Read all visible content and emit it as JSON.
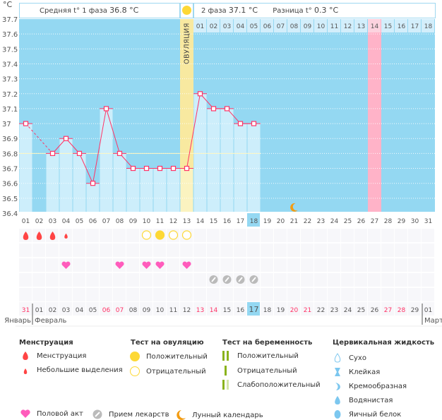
{
  "y_unit": "°C",
  "header": {
    "phase1_label": "Средняя t° 1 фаза",
    "phase1_value": "36.8 °C",
    "phase2_label": "2 фаза",
    "phase2_value": "37.1 °C",
    "diff_label": "Разница t°",
    "diff_value": "0.3 °C",
    "ovulation_label": "ОВУЛЯЦИЯ"
  },
  "colors": {
    "plot_bg": "#94d8f2",
    "bar": "#cdeefb",
    "line": "#ff3366",
    "ovulation": "#f8e9a0",
    "highlight_day": "#ffb3c8",
    "weekend": "#ff3366"
  },
  "chart_data": {
    "type": "line",
    "ylim": [
      36.4,
      37.7
    ],
    "yticks": [
      "37.7",
      "37.6",
      "37.5",
      "37.4",
      "37.3",
      "37.2",
      "37.1",
      "37",
      "36.9",
      "36.8",
      "36.7",
      "36.6",
      "36.5",
      "36.4"
    ],
    "cycle_days": [
      "01",
      "02",
      "03",
      "04",
      "05",
      "06",
      "07",
      "08",
      "09",
      "10",
      "11",
      "12",
      "13",
      "14",
      "15",
      "16",
      "17",
      "18",
      "19",
      "20",
      "21",
      "22",
      "23",
      "24",
      "25",
      "26",
      "27",
      "28",
      "29",
      "30",
      "31"
    ],
    "temperatures": [
      37.0,
      null,
      36.8,
      36.9,
      36.8,
      36.6,
      37.1,
      36.8,
      36.7,
      36.7,
      36.7,
      36.7,
      36.7,
      37.2,
      37.1,
      37.1,
      37.0,
      37.0
    ],
    "coverline": 36.8,
    "ovulation_day": 13,
    "current_day": 18,
    "pink_day": 27,
    "moon_day": 21,
    "phase2_days": [
      "01",
      "02",
      "03",
      "04",
      "05",
      "06",
      "07",
      "08",
      "09",
      "10",
      "11",
      "12",
      "13",
      "14",
      "15",
      "16",
      "17",
      "18"
    ]
  },
  "calendar": {
    "dates": [
      "31",
      "01",
      "02",
      "03",
      "04",
      "05",
      "06",
      "07",
      "08",
      "09",
      "10",
      "11",
      "12",
      "13",
      "14",
      "15",
      "16",
      "17",
      "18",
      "19",
      "20",
      "21",
      "22",
      "23",
      "24",
      "25",
      "26",
      "27",
      "28",
      "29",
      "01"
    ],
    "red": [
      0,
      6,
      7,
      13,
      14,
      20,
      21,
      27,
      28
    ],
    "today_index": 17,
    "months": [
      "Январь",
      "Февраль",
      "Март"
    ]
  },
  "markers": {
    "menstruation": {
      "1": "heavy",
      "2": "heavy",
      "3": "heavy",
      "4": "light"
    },
    "ovulation_test": {
      "10": "negative",
      "11": "positive",
      "12": "negative",
      "13": "negative"
    },
    "intercourse": [
      4,
      8,
      10,
      11,
      13
    ],
    "medication": [
      15,
      16,
      17,
      18
    ]
  },
  "legend": {
    "menstruation": {
      "title": "Менструация",
      "items": [
        "Менструация",
        "Небольшие выделения"
      ]
    },
    "ovulation_test": {
      "title": "Тест на овуляцию",
      "items": [
        "Положительный",
        "Отрицательный"
      ]
    },
    "pregnancy_test": {
      "title": "Тест на беременность",
      "items": [
        "Положительный",
        "Отрицательный",
        "Слабоположительный"
      ]
    },
    "cervical": {
      "title": "Цервикальная жидкость",
      "items": [
        "Сухо",
        "Клейкая",
        "Кремообразная",
        "Водянистая",
        "Яичный белок"
      ]
    },
    "bottom": [
      "Половой акт",
      "Прием лекарств",
      "Лунный календарь"
    ]
  }
}
